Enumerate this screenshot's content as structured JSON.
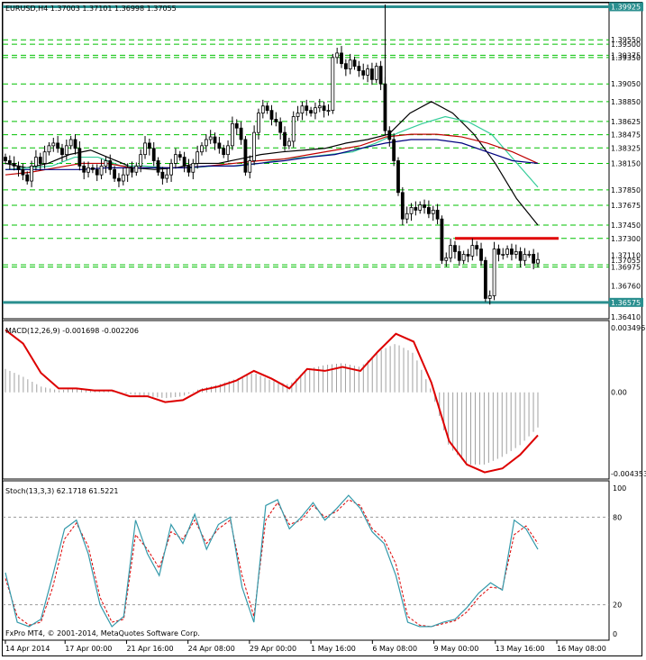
{
  "chart_data": [
    {
      "type": "line",
      "subtype": "candlestick",
      "title": "EURUSD,H4  1.37003 1.37101 1.36998 1.37055",
      "ylim": [
        1.3641,
        1.3995
      ],
      "x_tick_labels": [
        "14 Apr 2014",
        "17 Apr 00:00",
        "21 Apr 16:00",
        "24 Apr 08:00",
        "29 Apr 00:00",
        "1 May 16:00",
        "6 May 08:00",
        "9 May 00:00",
        "13 May 16:00",
        "16 May 08:00"
      ],
      "price_labels": [
        "1.39925",
        "1.39550",
        "1.39500",
        "1.39375",
        "1.39350",
        "1.39050",
        "1.38850",
        "1.38625",
        "1.38475",
        "1.38325",
        "1.38150",
        "1.37850",
        "1.37675",
        "1.37450",
        "1.37300",
        "1.37110",
        "1.37055",
        "1.36975",
        "1.36760",
        "1.36575",
        "1.36410"
      ],
      "horizontal_levels": [
        1.39925,
        1.3955,
        1.395,
        1.39375,
        1.3935,
        1.3905,
        1.3885,
        1.38625,
        1.38475,
        1.38325,
        1.3815,
        1.3785,
        1.37675,
        1.3745,
        1.373,
        1.37,
        1.36975,
        1.36575
      ],
      "support_level": 1.36575,
      "top_level": 1.39925,
      "resistance_segment": {
        "value": 1.373
      },
      "series": [
        {
          "name": "close",
          "values": [
            1.3818,
            1.3815,
            1.3812,
            1.3808,
            1.3802,
            1.3795,
            1.3812,
            1.3822,
            1.3815,
            1.3828,
            1.3835,
            1.3838,
            1.3832,
            1.3825,
            1.3835,
            1.3842,
            1.3832,
            1.3812,
            1.3805,
            1.381,
            1.3808,
            1.3802,
            1.3812,
            1.3818,
            1.3808,
            1.3798,
            1.3795,
            1.3802,
            1.381,
            1.3805,
            1.3812,
            1.3825,
            1.3838,
            1.3832,
            1.3818,
            1.3805,
            1.3798,
            1.3802,
            1.3815,
            1.3825,
            1.3822,
            1.3812,
            1.3805,
            1.3815,
            1.3828,
            1.3835,
            1.3842,
            1.3845,
            1.3838,
            1.3832,
            1.3825,
            1.3835,
            1.386,
            1.3855,
            1.3842,
            1.3805,
            1.3818,
            1.385,
            1.3872,
            1.388,
            1.3875,
            1.3865,
            1.3862,
            1.385,
            1.3835,
            1.384,
            1.3868,
            1.3872,
            1.388,
            1.3875,
            1.3872,
            1.3878,
            1.388,
            1.3875,
            1.3875,
            1.3935,
            1.394,
            1.3928,
            1.3922,
            1.3932,
            1.3925,
            1.392,
            1.3915,
            1.3922,
            1.391,
            1.3925,
            1.3905,
            1.3852,
            1.3842,
            1.3818,
            1.3782,
            1.3752,
            1.3758,
            1.3765,
            1.3762,
            1.3768,
            1.3765,
            1.3758,
            1.3762,
            1.3752,
            1.3705,
            1.3708,
            1.3722,
            1.3715,
            1.3705,
            1.3712,
            1.371,
            1.3722,
            1.3718,
            1.3705,
            1.3662,
            1.3665,
            1.3718,
            1.3712,
            1.3712,
            1.3718,
            1.3712,
            1.3715,
            1.3705,
            1.3712,
            1.3712,
            1.3702,
            1.3706
          ],
          "note_open_high_low": ""
        },
        {
          "name": "MA fast (black)",
          "values": [
            1.3815,
            1.381,
            1.3815,
            1.3825,
            1.383,
            1.382,
            1.381,
            1.3808,
            1.381,
            1.3815,
            1.3815,
            1.382,
            1.3825,
            1.3828,
            1.383,
            1.3832,
            1.3838,
            1.3842,
            1.3848,
            1.3872,
            1.3885,
            1.3872,
            1.3848,
            1.3815,
            1.3775,
            1.3745
          ]
        },
        {
          "name": "MA medium (cyan)",
          "values": [
            1.3808,
            1.381,
            1.3812,
            1.3822,
            1.3822,
            1.3812,
            1.3812,
            1.381,
            1.381,
            1.3812,
            1.3812,
            1.3815,
            1.382,
            1.3822,
            1.3825,
            1.3828,
            1.3838,
            1.385,
            1.386,
            1.3868,
            1.3862,
            1.3848,
            1.3818,
            1.3788
          ]
        },
        {
          "name": "MA slow (red)",
          "values": [
            1.3802,
            1.3805,
            1.381,
            1.3815,
            1.3815,
            1.381,
            1.381,
            1.381,
            1.3812,
            1.3815,
            1.3818,
            1.382,
            1.3825,
            1.383,
            1.3835,
            1.3845,
            1.3848,
            1.3848,
            1.3845,
            1.3838,
            1.3828,
            1.3815
          ]
        },
        {
          "name": "MA slowest (blue)",
          "values": [
            1.3808,
            1.3808,
            1.3808,
            1.3808,
            1.381,
            1.381,
            1.381,
            1.381,
            1.3812,
            1.3812,
            1.3815,
            1.3818,
            1.3822,
            1.3825,
            1.3832,
            1.3838,
            1.3842,
            1.3842,
            1.3838,
            1.3828,
            1.3818,
            1.3815
          ]
        }
      ]
    },
    {
      "type": "line",
      "title": "MACD(12,26,9) -0.001698 -0.002206",
      "ylim": [
        -0.00435,
        0.003496
      ],
      "tick_labels": [
        "0.003496",
        "0.00",
        "-0.004353"
      ],
      "series": [
        {
          "name": "signal",
          "values": [
            0.0032,
            0.0025,
            0.001,
            0.0002,
            0.0002,
            0.0001,
            0.0001,
            -0.0002,
            -0.0002,
            -0.0005,
            -0.0004,
            0.0001,
            0.0003,
            0.0006,
            0.0011,
            0.0007,
            0.0002,
            0.0012,
            0.0011,
            0.0013,
            0.0011,
            0.0021,
            0.003,
            0.0026,
            0.0005,
            -0.0025,
            -0.0037,
            -0.0041,
            -0.0039,
            -0.0032,
            -0.0022
          ]
        },
        {
          "name": "histogram",
          "values": [
            0.0012,
            0.0008,
            0.0003,
            0.0001,
            0.0002,
            0.0001,
            0.0001,
            -0.0001,
            -0.0002,
            -0.0003,
            -0.0002,
            0.0002,
            0.0004,
            0.0007,
            0.001,
            0.0006,
            0.0004,
            0.0012,
            0.0014,
            0.0015,
            0.0013,
            0.0021,
            0.0025,
            0.002,
            0.0001,
            -0.0028,
            -0.0037,
            -0.0037,
            -0.0033,
            -0.0027,
            -0.0018
          ]
        }
      ]
    },
    {
      "type": "line",
      "title": "Stoch(13,3,3) 62.1718 61.5221",
      "ylim": [
        0,
        100
      ],
      "tick_labels": [
        "100",
        "80",
        "20",
        "0"
      ],
      "levels": [
        80,
        20
      ],
      "series": [
        {
          "name": "main",
          "values": [
            42,
            8,
            5,
            10,
            40,
            72,
            78,
            55,
            20,
            5,
            12,
            78,
            55,
            40,
            75,
            62,
            82,
            58,
            75,
            80,
            32,
            8,
            88,
            92,
            72,
            80,
            90,
            78,
            86,
            95,
            86,
            70,
            62,
            40,
            8,
            5,
            5,
            8,
            10,
            18,
            28,
            35,
            30,
            78,
            72,
            58
          ]
        },
        {
          "name": "signal",
          "values": [
            38,
            12,
            6,
            8,
            32,
            65,
            76,
            60,
            25,
            8,
            10,
            68,
            58,
            45,
            70,
            65,
            78,
            62,
            72,
            78,
            40,
            12,
            78,
            90,
            75,
            78,
            88,
            80,
            84,
            92,
            88,
            72,
            65,
            48,
            12,
            6,
            5,
            7,
            9,
            15,
            25,
            32,
            31,
            68,
            74,
            62
          ]
        }
      ]
    }
  ],
  "watermark": "FxPro MT4, © 2001-2014, MetaQuotes Software Corp.",
  "colors": {
    "background": "#ffffff",
    "grid_green": "#00c000",
    "level_teal": "#2a8f8f",
    "resistance_red": "#e00000",
    "ma_black": "#000000",
    "ma_cyan": "#33cc99",
    "ma_red": "#c00000",
    "ma_blue": "#000080",
    "macd_signal": "#dd0000",
    "macd_histogram": "#a0a0a0",
    "stoch_main": "#3399aa",
    "stoch_signal": "#dd0000"
  }
}
